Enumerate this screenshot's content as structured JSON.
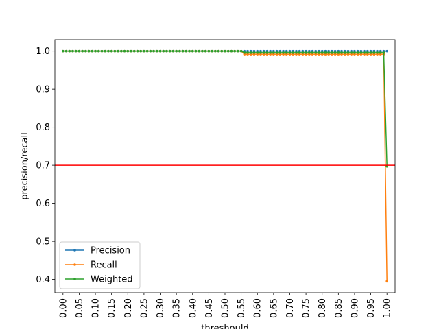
{
  "chart_data": {
    "type": "line",
    "title": "",
    "xlabel": "threshould",
    "ylabel": "precision/recall",
    "xlim": [
      -0.025,
      1.025
    ],
    "ylim": [
      0.365,
      1.03
    ],
    "xticks": [
      "0.00",
      "0.05",
      "0.10",
      "0.15",
      "0.20",
      "0.25",
      "0.30",
      "0.35",
      "0.40",
      "0.45",
      "0.50",
      "0.55",
      "0.60",
      "0.65",
      "0.70",
      "0.75",
      "0.80",
      "0.85",
      "0.90",
      "0.95",
      "1.00"
    ],
    "yticks": [
      "0.4",
      "0.5",
      "0.6",
      "0.7",
      "0.8",
      "0.9",
      "1.0"
    ],
    "grid": false,
    "legend_position": "lower-left",
    "hline": {
      "y": 0.7,
      "color": "#ff0000"
    },
    "series": [
      {
        "name": "Precision",
        "color": "#1f77b4",
        "x": [
          0.0,
          0.55,
          1.0
        ],
        "y": [
          1.0,
          1.0,
          1.0
        ],
        "marker_step": 0.01
      },
      {
        "name": "Recall",
        "color": "#ff7f0e",
        "x": [
          0.0,
          0.55,
          0.56,
          0.99,
          1.0
        ],
        "y": [
          1.0,
          1.0,
          0.992,
          0.992,
          0.395
        ],
        "marker_step": 0.01
      },
      {
        "name": "Weighted",
        "color": "#2ca02c",
        "x": [
          0.0,
          0.55,
          0.56,
          0.99,
          1.0
        ],
        "y": [
          1.0,
          1.0,
          0.996,
          0.996,
          0.697
        ],
        "marker_step": 0.01
      }
    ]
  }
}
